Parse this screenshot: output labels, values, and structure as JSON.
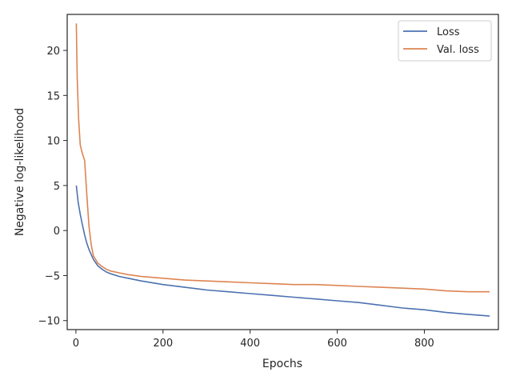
{
  "chart_data": {
    "type": "line",
    "title": "",
    "xlabel": "Epochs",
    "ylabel": "Negative log-likelihood",
    "xlim": [
      -20,
      970
    ],
    "ylim": [
      -11,
      24
    ],
    "xticks": [
      0,
      200,
      400,
      600,
      800
    ],
    "yticks": [
      -10,
      -5,
      0,
      5,
      10,
      15,
      20
    ],
    "xtick_labels": [
      "0",
      "200",
      "400",
      "600",
      "800"
    ],
    "ytick_labels": [
      "−10",
      "−5",
      "0",
      "5",
      "10",
      "15",
      "20"
    ],
    "grid": false,
    "legend_position": "top-right",
    "series": [
      {
        "name": "Loss",
        "color": "#4c72b0",
        "x": [
          1,
          5,
          10,
          15,
          20,
          25,
          30,
          40,
          50,
          60,
          70,
          80,
          100,
          120,
          150,
          200,
          250,
          300,
          350,
          400,
          450,
          500,
          550,
          600,
          650,
          700,
          750,
          800,
          850,
          900,
          950
        ],
        "y": [
          5.0,
          3.2,
          1.8,
          0.6,
          -0.5,
          -1.4,
          -2.1,
          -3.2,
          -3.9,
          -4.3,
          -4.6,
          -4.8,
          -5.1,
          -5.3,
          -5.6,
          -6.0,
          -6.3,
          -6.6,
          -6.8,
          -7.0,
          -7.2,
          -7.4,
          -7.6,
          -7.8,
          -8.0,
          -8.3,
          -8.6,
          -8.8,
          -9.1,
          -9.3,
          -9.5
        ]
      },
      {
        "name": "Val. loss",
        "color": "#dd8452",
        "x": [
          1,
          3,
          6,
          10,
          15,
          20,
          25,
          30,
          35,
          40,
          50,
          60,
          70,
          80,
          100,
          120,
          150,
          200,
          250,
          300,
          350,
          400,
          450,
          500,
          550,
          600,
          650,
          700,
          750,
          800,
          850,
          900,
          950
        ],
        "y": [
          23.0,
          17.0,
          12.5,
          9.5,
          8.5,
          7.8,
          4.0,
          0.5,
          -1.5,
          -2.8,
          -3.6,
          -4.0,
          -4.3,
          -4.5,
          -4.7,
          -4.9,
          -5.1,
          -5.3,
          -5.5,
          -5.6,
          -5.7,
          -5.8,
          -5.9,
          -6.0,
          -6.0,
          -6.1,
          -6.2,
          -6.3,
          -6.4,
          -6.5,
          -6.7,
          -6.8,
          -6.8
        ]
      }
    ]
  }
}
